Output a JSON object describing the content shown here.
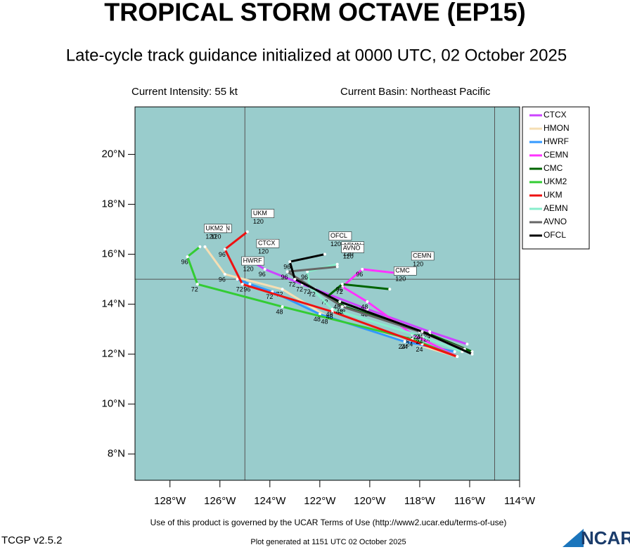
{
  "chart_data": {
    "type": "track",
    "title": "TROPICAL STORM OCTAVE (EP15)",
    "subtitle": "Late-cycle track guidance initialized at 0000 UTC, 02 October 2025",
    "intensity": "Current Intensity: 55 kt",
    "basin": "Current Basin: Northeast Pacific",
    "footer": "Use of this product is governed by the UCAR Terms of Use (http://www2.ucar.edu/terms-of-use)",
    "version": "TCGP v2.5.2",
    "generated": "Plot generated at 1151 UTC   02 October 2025",
    "logo": "NCAR",
    "xlim": [
      -129.4,
      -114
    ],
    "ylim": [
      6.95,
      21.9
    ],
    "xticks": [
      {
        "value": -128,
        "label": "128°W"
      },
      {
        "value": -126,
        "label": "126°W"
      },
      {
        "value": -124,
        "label": "124°W"
      },
      {
        "value": -122,
        "label": "122°W"
      },
      {
        "value": -120,
        "label": "120°W"
      },
      {
        "value": -118,
        "label": "118°W"
      },
      {
        "value": -116,
        "label": "116°W"
      },
      {
        "value": -114,
        "label": "114°W"
      }
    ],
    "yticks": [
      {
        "value": 8,
        "label": "8°N"
      },
      {
        "value": 10,
        "label": "10°N"
      },
      {
        "value": 12,
        "label": "12°N"
      },
      {
        "value": 14,
        "label": "14°N"
      },
      {
        "value": 16,
        "label": "16°N"
      },
      {
        "value": 18,
        "label": "18°N"
      },
      {
        "value": 20,
        "label": "20°N"
      }
    ],
    "grid_lon": [
      -125,
      -115
    ],
    "grid_lat": [
      15
    ],
    "hours": [
      0,
      24,
      48,
      72,
      96,
      120
    ],
    "series": [
      {
        "name": "CTCX",
        "color": "#cc44ff",
        "lon": [
          -116.1,
          -117.6,
          -120.1,
          -122.7,
          -124.2,
          -124.7
        ],
        "lat": [
          12.4,
          12.9,
          13.8,
          14.8,
          15.4,
          15.7
        ]
      },
      {
        "name": "HMON",
        "color": "#f5deb3",
        "lon": [
          -116.5,
          -118.5,
          -121.7,
          -123.5,
          -125.8,
          -126.6
        ],
        "lat": [
          11.9,
          12.5,
          13.5,
          14.6,
          15.2,
          16.3
        ]
      },
      {
        "name": "HWRF",
        "color": "#3399ff",
        "lon": [
          -116.6,
          -118.6,
          -122.0,
          -123.9,
          -124.8,
          -125.3
        ],
        "lat": [
          12.1,
          12.5,
          13.6,
          14.5,
          14.8,
          15.0
        ]
      },
      {
        "name": "CEMN",
        "color": "#ff33ff",
        "lon": [
          -116.5,
          -118.3,
          -120.1,
          -121.1,
          -120.3,
          -118.5
        ],
        "lat": [
          11.9,
          12.8,
          14.1,
          14.7,
          15.4,
          15.2
        ]
      },
      {
        "name": "CMC",
        "color": "#006400",
        "lon": [
          -115.9,
          -117.6,
          -121.0,
          -121.7,
          -121.1,
          -119.2
        ],
        "lat": [
          12.1,
          12.8,
          13.9,
          14.3,
          14.8,
          14.6
        ]
      },
      {
        "name": "UKM2",
        "color": "#33cc33",
        "lon": [
          -116.5,
          -118.3,
          -123.5,
          -126.9,
          -127.3,
          -126.8
        ],
        "lat": [
          11.9,
          12.6,
          13.9,
          14.8,
          15.9,
          16.3
        ]
      },
      {
        "name": "UKM",
        "color": "#ee1111",
        "lon": [
          -116.5,
          -117.9,
          -121.5,
          -125.1,
          -125.8,
          -124.9
        ],
        "lat": [
          11.9,
          12.4,
          13.7,
          14.8,
          16.2,
          16.9
        ]
      },
      {
        "name": "AEMN",
        "color": "#88eecc",
        "lon": [
          -116.3,
          -117.9,
          -121.5,
          -122.4,
          -122.5,
          -121.3
        ],
        "lat": [
          12.1,
          12.7,
          13.8,
          14.7,
          15.3,
          15.6
        ]
      },
      {
        "name": "AVNO",
        "color": "#666666",
        "lon": [
          -116.2,
          -118.0,
          -121.1,
          -122.2,
          -123.3,
          -121.3
        ],
        "lat": [
          12.2,
          12.9,
          13.9,
          14.6,
          15.3,
          15.5
        ]
      },
      {
        "name": "OFCL",
        "color": "#000000",
        "lon": [
          -115.9,
          -117.9,
          -121.2,
          -123.0,
          -123.2,
          -121.8
        ],
        "lat": [
          12.0,
          12.9,
          14.1,
          15.0,
          15.7,
          16.0
        ]
      }
    ]
  }
}
